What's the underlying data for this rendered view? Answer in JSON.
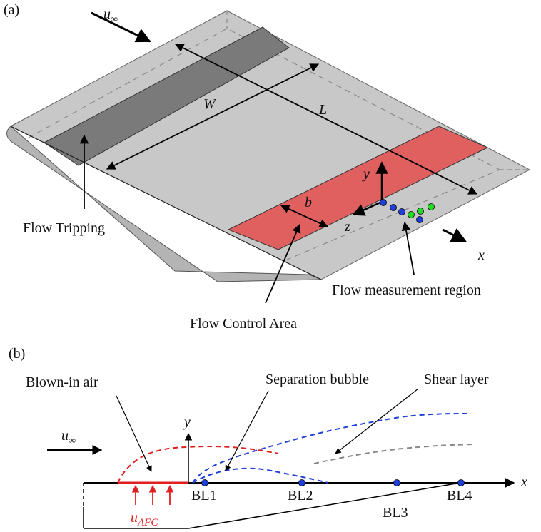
{
  "panel_a": {
    "tag": "(a)",
    "u_inf": "u",
    "u_inf_sub": "∞",
    "W": "W",
    "L": "L",
    "b": "b",
    "y": "y",
    "z": "z",
    "x": "x",
    "flow_tripping": "Flow Tripping",
    "flow_control_area": "Flow Control Area",
    "flow_measurement_region": "Flow measurement region"
  },
  "panel_b": {
    "tag": "(b)",
    "blown_in_air": "Blown-in air",
    "separation_bubble": "Separation bubble",
    "shear_layer": "Shear layer",
    "u_inf": "u",
    "u_inf_sub": "∞",
    "y": "y",
    "x": "x",
    "u_afc": "u",
    "u_afc_sub": "AFC",
    "bl1": "BL1",
    "bl2": "BL2",
    "bl3": "BL3",
    "bl4": "BL4"
  },
  "colors": {
    "plate": "#c8c8c8",
    "trip": "#7a7a7a",
    "control": "#e06060",
    "blue": "#1f3fd8",
    "green": "#22dd22",
    "red": "#e02020",
    "gray_dash": "#888888"
  }
}
